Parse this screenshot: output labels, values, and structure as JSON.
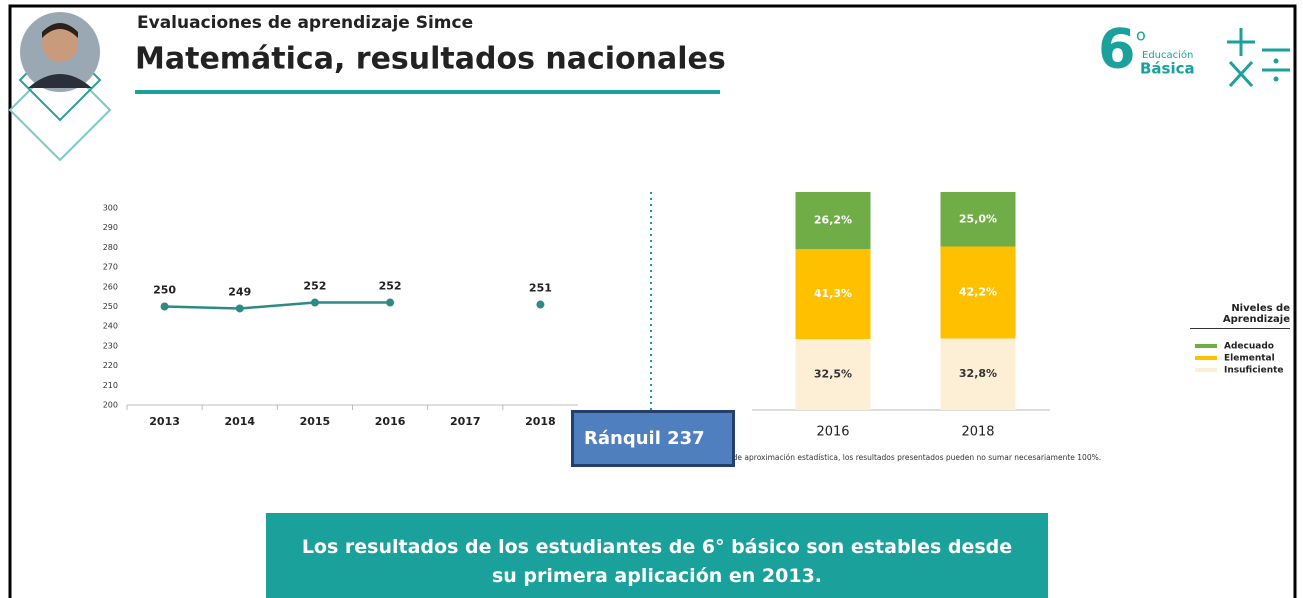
{
  "header": {
    "subtitle": "Evaluaciones de aprendizaje Simce",
    "title": "Matemática, resultados nacionales"
  },
  "logo": {
    "number": "6",
    "degree": "o",
    "line1": "Educación",
    "line2": "Básica"
  },
  "chart_data": [
    {
      "type": "line",
      "categories": [
        "2013",
        "2014",
        "2015",
        "2016",
        "2017",
        "2018"
      ],
      "values": [
        250,
        249,
        252,
        252,
        null,
        251
      ],
      "color": "#2e8b84",
      "ylim": [
        200,
        300
      ],
      "yticks": [
        200,
        210,
        220,
        230,
        240,
        250,
        260,
        270,
        280,
        290,
        300
      ]
    },
    {
      "type": "bar",
      "stacked": true,
      "categories": [
        "2016",
        "2018"
      ],
      "ylim": [
        0,
        100
      ],
      "legend_title": "Niveles de Aprendizaje",
      "legend": "right",
      "series": [
        {
          "name": "Insuficiente",
          "color": "#fcefd6",
          "values": [
            32.5,
            32.8
          ],
          "value_labels": [
            "32,5%",
            "32,8%"
          ]
        },
        {
          "name": "Elemental",
          "color": "#ffc000",
          "values": [
            41.3,
            42.2
          ],
          "value_labels": [
            "41,3%",
            "42,2%"
          ]
        },
        {
          "name": "Adecuado",
          "color": "#70ad47",
          "values": [
            26.2,
            25.0
          ],
          "value_labels": [
            "26,2%",
            "25,0%"
          ]
        }
      ],
      "note": "nes de aproximación estadística, los resultados presentados pueden no sumar necesariamente 100%."
    }
  ],
  "badge": "Ránquil 237",
  "conclusion": "Los resultados de los estudiantes de 6° básico son estables desde su primera aplicación en 2013."
}
